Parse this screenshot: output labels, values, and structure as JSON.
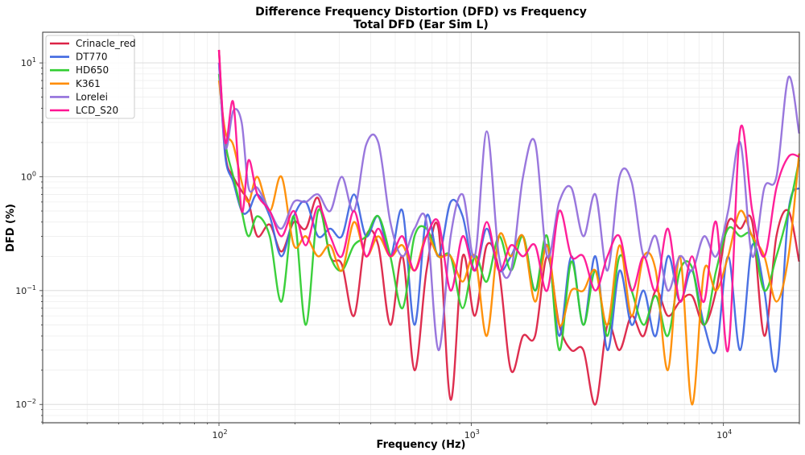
{
  "chart_data": {
    "type": "line",
    "title": "Difference Frequency Distortion (DFD) vs Frequency",
    "subtitle": "Total DFD (Ear Sim L)",
    "xlabel": "Frequency (Hz)",
    "ylabel": "DFD (%)",
    "xscale": "log",
    "yscale": "log",
    "xlim": [
      20,
      20000
    ],
    "ylim": [
      0.0069,
      18.6
    ],
    "x_ticks": [
      100,
      1000,
      10000
    ],
    "y_ticks": [
      0.01,
      0.1,
      1,
      10
    ],
    "grid": true,
    "legend_position": "top-left",
    "x": [
      100,
      106,
      114,
      123,
      131,
      142,
      159,
      177,
      198,
      221,
      247,
      276,
      307,
      343,
      383,
      428,
      478,
      534,
      596,
      665,
      742,
      829,
      925,
      1033,
      1153,
      1288,
      1437,
      1605,
      1792,
      2000,
      2233,
      2494,
      2784,
      3108,
      3470,
      3874,
      4325,
      4829,
      5391,
      6019,
      6720,
      7502,
      8376,
      9352,
      10440,
      11657,
      13014,
      14530,
      16222,
      18110,
      19960
    ],
    "series": [
      {
        "name": "Crinacle_red",
        "color": "#dc2346",
        "values": [
          13,
          1.6,
          1.0,
          0.75,
          0.6,
          0.3,
          0.38,
          0.22,
          0.4,
          0.35,
          0.65,
          0.2,
          0.17,
          0.06,
          0.3,
          0.25,
          0.05,
          0.2,
          0.02,
          0.15,
          0.35,
          0.011,
          0.2,
          0.06,
          0.25,
          0.15,
          0.02,
          0.04,
          0.04,
          0.2,
          0.05,
          0.03,
          0.03,
          0.01,
          0.05,
          0.03,
          0.06,
          0.04,
          0.1,
          0.06,
          0.08,
          0.09,
          0.05,
          0.1,
          0.4,
          0.35,
          0.4,
          0.04,
          0.3,
          0.5,
          0.18
        ]
      },
      {
        "name": "DT770",
        "color": "#4169e1",
        "values": [
          10,
          1.5,
          0.9,
          0.5,
          0.5,
          0.7,
          0.45,
          0.2,
          0.45,
          0.6,
          0.3,
          0.35,
          0.3,
          0.7,
          0.3,
          0.45,
          0.2,
          0.5,
          0.05,
          0.45,
          0.2,
          0.6,
          0.45,
          0.15,
          0.35,
          0.15,
          0.2,
          0.3,
          0.1,
          0.25,
          0.04,
          0.2,
          0.05,
          0.2,
          0.03,
          0.15,
          0.05,
          0.1,
          0.04,
          0.2,
          0.08,
          0.15,
          0.05,
          0.03,
          0.2,
          0.03,
          0.25,
          0.1,
          0.02,
          0.5,
          0.8
        ]
      },
      {
        "name": "HD650",
        "color": "#32cd32",
        "values": [
          8,
          2.0,
          1.0,
          0.5,
          0.3,
          0.45,
          0.3,
          0.08,
          0.45,
          0.05,
          0.5,
          0.2,
          0.15,
          0.25,
          0.3,
          0.45,
          0.2,
          0.07,
          0.3,
          0.35,
          0.2,
          0.2,
          0.07,
          0.2,
          0.12,
          0.3,
          0.15,
          0.3,
          0.1,
          0.3,
          0.03,
          0.18,
          0.05,
          0.15,
          0.04,
          0.2,
          0.1,
          0.05,
          0.09,
          0.04,
          0.15,
          0.16,
          0.05,
          0.15,
          0.35,
          0.3,
          0.3,
          0.1,
          0.2,
          0.5,
          1.4
        ]
      },
      {
        "name": "K361",
        "color": "#ff8c00",
        "values": [
          7,
          2.5,
          1.9,
          0.9,
          0.6,
          1.0,
          0.5,
          1.0,
          0.25,
          0.3,
          0.2,
          0.25,
          0.15,
          0.4,
          0.2,
          0.3,
          0.2,
          0.25,
          0.15,
          0.3,
          0.2,
          0.2,
          0.12,
          0.2,
          0.04,
          0.3,
          0.2,
          0.3,
          0.08,
          0.25,
          0.05,
          0.1,
          0.1,
          0.15,
          0.05,
          0.25,
          0.06,
          0.2,
          0.15,
          0.02,
          0.2,
          0.01,
          0.15,
          0.1,
          0.2,
          0.5,
          0.3,
          0.2,
          0.08,
          0.2,
          1.6
        ]
      },
      {
        "name": "Lorelei",
        "color": "#9370db",
        "values": [
          10,
          1.8,
          3.8,
          3.0,
          0.8,
          0.8,
          0.5,
          0.35,
          0.6,
          0.6,
          0.7,
          0.5,
          1.0,
          0.5,
          1.9,
          2.0,
          0.4,
          0.2,
          0.35,
          0.4,
          0.03,
          0.3,
          0.7,
          0.2,
          2.5,
          0.2,
          0.15,
          1.0,
          2.0,
          0.2,
          0.6,
          0.8,
          0.3,
          0.7,
          0.15,
          1.0,
          0.9,
          0.2,
          0.3,
          0.1,
          0.2,
          0.15,
          0.3,
          0.2,
          0.5,
          2.0,
          0.2,
          0.8,
          1.0,
          7.5,
          2.4
        ]
      },
      {
        "name": "LCD_S20",
        "color": "#ff1493",
        "values": [
          13,
          2.0,
          4.5,
          0.5,
          1.4,
          0.7,
          0.5,
          0.3,
          0.5,
          0.25,
          0.55,
          0.3,
          0.2,
          0.5,
          0.2,
          0.35,
          0.2,
          0.3,
          0.15,
          0.3,
          0.4,
          0.1,
          0.3,
          0.15,
          0.4,
          0.15,
          0.25,
          0.2,
          0.25,
          0.1,
          0.5,
          0.2,
          0.2,
          0.1,
          0.2,
          0.3,
          0.1,
          0.2,
          0.1,
          0.35,
          0.08,
          0.2,
          0.08,
          0.4,
          0.03,
          2.6,
          0.5,
          0.2,
          0.8,
          1.5,
          1.5
        ]
      }
    ]
  }
}
